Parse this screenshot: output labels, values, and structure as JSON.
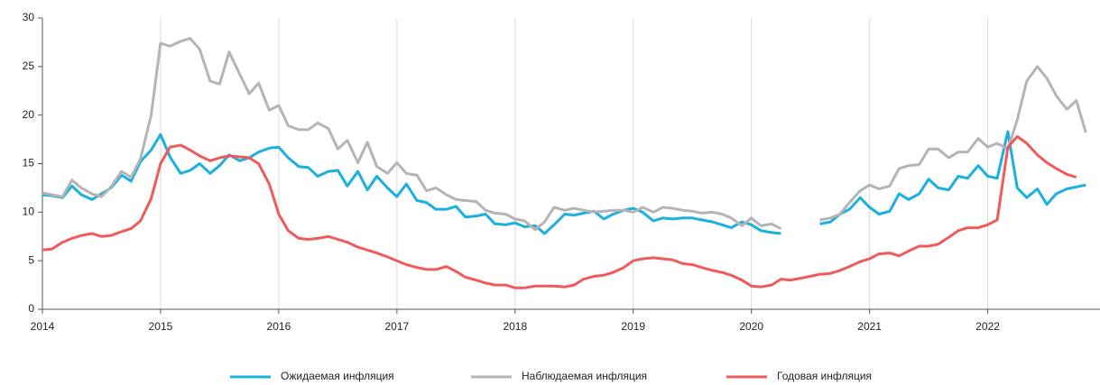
{
  "chart_data": {
    "type": "line",
    "x": [
      2014,
      2014.08,
      2014.17,
      2014.25,
      2014.33,
      2014.42,
      2014.5,
      2014.58,
      2014.67,
      2014.75,
      2014.83,
      2014.92,
      2015,
      2015.08,
      2015.17,
      2015.25,
      2015.33,
      2015.42,
      2015.5,
      2015.58,
      2015.67,
      2015.75,
      2015.83,
      2015.92,
      2016,
      2016.08,
      2016.17,
      2016.25,
      2016.33,
      2016.42,
      2016.5,
      2016.58,
      2016.67,
      2016.75,
      2016.83,
      2016.92,
      2017,
      2017.08,
      2017.17,
      2017.25,
      2017.33,
      2017.42,
      2017.5,
      2017.58,
      2017.67,
      2017.75,
      2017.83,
      2017.92,
      2018,
      2018.08,
      2018.17,
      2018.25,
      2018.33,
      2018.42,
      2018.5,
      2018.58,
      2018.67,
      2018.75,
      2018.83,
      2018.92,
      2019,
      2019.08,
      2019.17,
      2019.25,
      2019.33,
      2019.42,
      2019.5,
      2019.58,
      2019.67,
      2019.75,
      2019.83,
      2019.92,
      2020,
      2020.08,
      2020.17,
      2020.25,
      2020.33,
      2020.42,
      2020.5,
      2020.58,
      2020.67,
      2020.75,
      2020.83,
      2020.92,
      2021,
      2021.08,
      2021.17,
      2021.25,
      2021.33,
      2021.42,
      2021.5,
      2021.58,
      2021.67,
      2021.75,
      2021.83,
      2021.92,
      2022,
      2022.08,
      2022.17,
      2022.25,
      2022.33,
      2022.42,
      2022.5,
      2022.58,
      2022.67,
      2022.75,
      2022.83
    ],
    "series": [
      {
        "name": "Ожидаемая инфляция",
        "color": "#1ab0e0",
        "values": [
          11.8,
          11.7,
          11.5,
          12.7,
          11.8,
          11.3,
          11.9,
          12.5,
          13.8,
          13.2,
          15.2,
          16.4,
          18.0,
          15.7,
          14.0,
          14.3,
          15.0,
          14.0,
          14.8,
          15.9,
          15.3,
          15.6,
          16.2,
          16.6,
          16.7,
          15.6,
          14.7,
          14.6,
          13.7,
          14.2,
          14.3,
          12.7,
          14.2,
          12.3,
          13.7,
          12.5,
          11.6,
          12.9,
          11.2,
          11.0,
          10.3,
          10.3,
          10.6,
          9.5,
          9.6,
          9.8,
          8.8,
          8.7,
          8.9,
          8.5,
          8.6,
          7.8,
          8.7,
          9.8,
          9.7,
          9.9,
          10.1,
          9.3,
          9.8,
          10.2,
          10.4,
          10.0,
          9.1,
          9.4,
          9.3,
          9.4,
          9.4,
          9.2,
          9.0,
          8.7,
          8.4,
          9.0,
          8.7,
          8.1,
          7.9,
          7.8,
          null,
          null,
          null,
          8.8,
          9.0,
          9.8,
          10.3,
          11.5,
          10.5,
          9.8,
          10.1,
          11.9,
          11.3,
          11.9,
          13.4,
          12.5,
          12.3,
          13.7,
          13.5,
          14.8,
          13.7,
          13.5,
          18.3,
          12.5,
          11.5,
          12.4,
          10.8,
          11.9,
          12.4,
          12.6,
          12.8
        ]
      },
      {
        "name": "Наблюдаемая  инфляция",
        "color": "#b4b4b4",
        "values": [
          12.0,
          11.8,
          11.6,
          13.3,
          12.5,
          11.9,
          11.6,
          12.6,
          14.2,
          13.6,
          15.5,
          20.0,
          27.4,
          27.1,
          27.6,
          27.9,
          26.8,
          23.5,
          23.2,
          26.5,
          24.2,
          22.2,
          23.3,
          20.5,
          21.0,
          18.9,
          18.5,
          18.5,
          19.2,
          18.6,
          16.5,
          17.4,
          15.1,
          17.2,
          14.7,
          14.0,
          15.1,
          14.0,
          13.8,
          12.2,
          12.5,
          11.8,
          11.3,
          11.2,
          11.1,
          10.2,
          9.9,
          9.8,
          9.3,
          9.1,
          8.2,
          9.0,
          10.5,
          10.2,
          10.4,
          10.2,
          10.0,
          10.1,
          10.2,
          10.2,
          10.0,
          10.5,
          10.0,
          10.5,
          10.4,
          10.2,
          10.1,
          9.9,
          10.0,
          9.8,
          9.4,
          8.6,
          9.4,
          8.6,
          8.8,
          8.3,
          null,
          null,
          null,
          9.2,
          9.4,
          9.8,
          11.0,
          12.2,
          12.8,
          12.4,
          12.7,
          14.5,
          14.8,
          14.9,
          16.5,
          16.5,
          15.6,
          16.2,
          16.2,
          17.6,
          16.7,
          17.1,
          16.5,
          19.5,
          23.5,
          25.0,
          23.8,
          22.0,
          20.6,
          21.5,
          18.2
        ]
      },
      {
        "name": "Годовая инфляция",
        "color": "#f05a5a",
        "values": [
          6.1,
          6.2,
          6.9,
          7.3,
          7.6,
          7.8,
          7.5,
          7.6,
          8.0,
          8.3,
          9.1,
          11.4,
          15.0,
          16.7,
          16.9,
          16.4,
          15.8,
          15.3,
          15.6,
          15.8,
          15.7,
          15.6,
          15.0,
          12.9,
          9.8,
          8.1,
          7.3,
          7.2,
          7.3,
          7.5,
          7.2,
          6.9,
          6.4,
          6.1,
          5.8,
          5.4,
          5.0,
          4.6,
          4.3,
          4.1,
          4.1,
          4.4,
          3.9,
          3.3,
          3.0,
          2.7,
          2.5,
          2.5,
          2.2,
          2.2,
          2.4,
          2.4,
          2.4,
          2.3,
          2.5,
          3.1,
          3.4,
          3.5,
          3.8,
          4.3,
          5.0,
          5.2,
          5.3,
          5.2,
          5.1,
          4.7,
          4.6,
          4.3,
          4.0,
          3.8,
          3.5,
          3.0,
          2.4,
          2.3,
          2.5,
          3.1,
          3.0,
          3.2,
          3.4,
          3.6,
          3.7,
          4.0,
          4.4,
          4.9,
          5.2,
          5.7,
          5.8,
          5.5,
          6.0,
          6.5,
          6.5,
          6.7,
          7.4,
          8.1,
          8.4,
          8.4,
          8.7,
          9.2,
          16.7,
          17.8,
          17.1,
          15.9,
          15.1,
          14.5,
          13.9,
          13.6,
          null
        ]
      }
    ],
    "xlim": [
      2014,
      2022.95
    ],
    "xticks": [
      2014,
      2015,
      2016,
      2017,
      2018,
      2019,
      2020,
      2021,
      2022
    ],
    "ylim": [
      0,
      30
    ],
    "yticks": [
      0,
      5,
      10,
      15,
      20,
      25,
      30
    ],
    "grid": true,
    "legend": "bottom"
  }
}
